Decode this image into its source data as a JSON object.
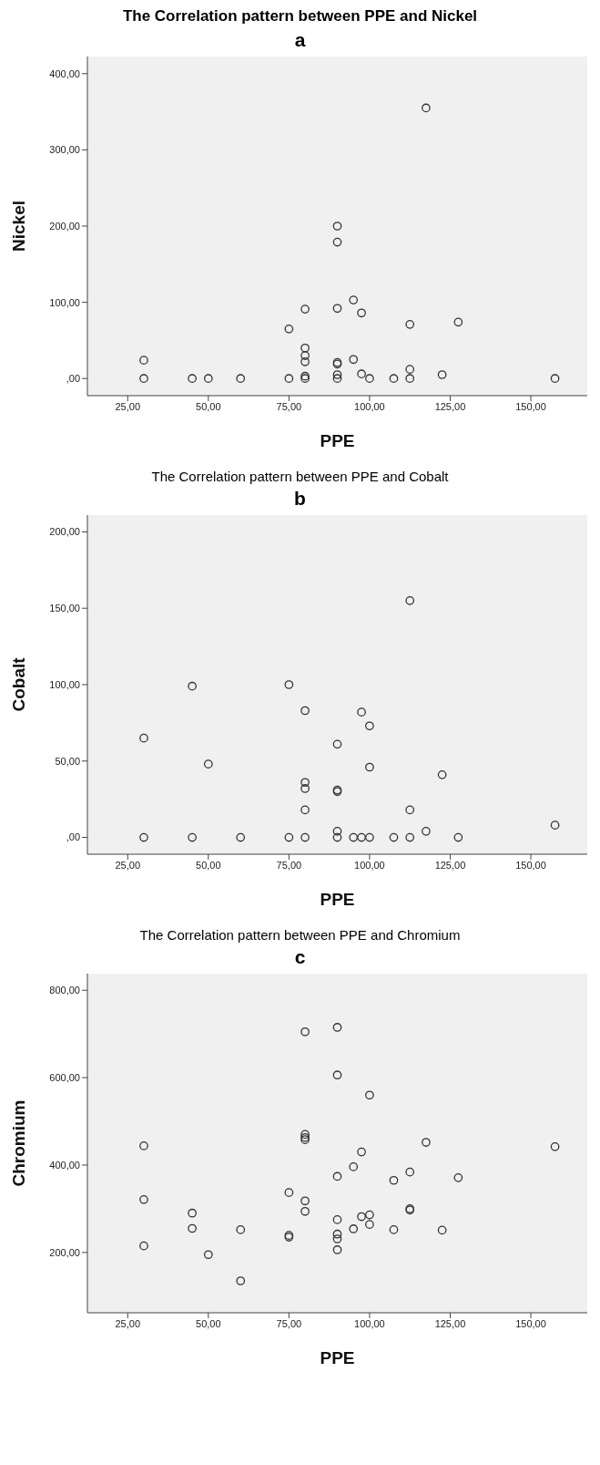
{
  "chart_data": [
    {
      "type": "scatter",
      "title": "The Correlation pattern between PPE and Nickel",
      "subtitle": "a",
      "xlabel": "PPE",
      "ylabel": "Nickel",
      "color": "#333333",
      "marker": "circle",
      "grid": false,
      "xlim": [
        12.5,
        167.5
      ],
      "xticks": [
        {
          "value": 25,
          "label": "25,00"
        },
        {
          "value": 50,
          "label": "50,00"
        },
        {
          "value": 75,
          "label": "75,00"
        },
        {
          "value": 100,
          "label": "100,00"
        },
        {
          "value": 125,
          "label": "125,00"
        },
        {
          "value": 150,
          "label": "150,00"
        }
      ],
      "ylim": [
        -22.5,
        422.5
      ],
      "yticks": [
        {
          "value": 0,
          "label": ",00"
        },
        {
          "value": 100,
          "label": "100,00"
        },
        {
          "value": 200,
          "label": "200,00"
        },
        {
          "value": 300,
          "label": "300,00"
        },
        {
          "value": 400,
          "label": "400,00"
        }
      ],
      "x": [
        30,
        30,
        45,
        50,
        60,
        75,
        75,
        80,
        80,
        80,
        80,
        80,
        80,
        90,
        90,
        90,
        90,
        90,
        90,
        90,
        95,
        95,
        97.5,
        97.5,
        100,
        107.5,
        112.5,
        112.5,
        112.5,
        117.5,
        122.5,
        127.5,
        157.5
      ],
      "values": [
        24,
        0,
        0,
        0,
        0,
        0,
        65,
        91,
        40,
        30,
        22,
        3,
        0,
        200,
        179,
        92,
        21,
        19,
        5,
        0,
        103,
        25,
        86,
        6,
        0,
        0,
        71,
        12,
        0,
        355,
        5,
        74,
        0
      ]
    },
    {
      "type": "scatter",
      "title": "The Correlation pattern between PPE and Cobalt",
      "subtitle": "b",
      "xlabel": "PPE",
      "ylabel": "Cobalt",
      "color": "#333333",
      "marker": "circle",
      "grid": false,
      "xlim": [
        12.5,
        167.5
      ],
      "xticks": [
        {
          "value": 25,
          "label": "25,00"
        },
        {
          "value": 50,
          "label": "50,00"
        },
        {
          "value": 75,
          "label": "75,00"
        },
        {
          "value": 100,
          "label": "100,00"
        },
        {
          "value": 125,
          "label": "125,00"
        },
        {
          "value": 150,
          "label": "150,00"
        }
      ],
      "ylim": [
        -11,
        211
      ],
      "yticks": [
        {
          "value": 0,
          "label": ",00"
        },
        {
          "value": 50,
          "label": "50,00"
        },
        {
          "value": 100,
          "label": "100,00"
        },
        {
          "value": 150,
          "label": "150,00"
        },
        {
          "value": 200,
          "label": "200,00"
        }
      ],
      "x": [
        30,
        30,
        45,
        45,
        50,
        60,
        75,
        75,
        80,
        80,
        80,
        80,
        80,
        90,
        90,
        90,
        90,
        90,
        95,
        97.5,
        97.5,
        100,
        100,
        100,
        107.5,
        112.5,
        112.5,
        112.5,
        117.5,
        122.5,
        127.5,
        157.5
      ],
      "values": [
        65,
        0,
        99,
        0,
        48,
        0,
        100,
        0,
        83,
        36,
        32,
        18,
        0,
        61,
        31,
        30,
        4,
        0,
        0,
        82,
        0,
        73,
        46,
        0,
        0,
        155,
        18,
        0,
        4,
        41,
        0,
        8
      ]
    },
    {
      "type": "scatter",
      "title": "The Correlation pattern between PPE and Chromium",
      "subtitle": "c",
      "xlabel": "PPE",
      "ylabel": "Chromium",
      "color": "#333333",
      "marker": "circle",
      "grid": false,
      "xlim": [
        12.5,
        167.5
      ],
      "xticks": [
        {
          "value": 25,
          "label": "25,00"
        },
        {
          "value": 50,
          "label": "50,00"
        },
        {
          "value": 75,
          "label": "75,00"
        },
        {
          "value": 100,
          "label": "100,00"
        },
        {
          "value": 125,
          "label": "125,00"
        },
        {
          "value": 150,
          "label": "150,00"
        }
      ],
      "ylim": [
        62,
        838
      ],
      "yticks": [
        {
          "value": 200,
          "label": "200,00"
        },
        {
          "value": 400,
          "label": "400,00"
        },
        {
          "value": 600,
          "label": "600,00"
        },
        {
          "value": 800,
          "label": "800,00"
        }
      ],
      "x": [
        30,
        30,
        30,
        45,
        45,
        50,
        60,
        60,
        75,
        75,
        75,
        80,
        80,
        80,
        80,
        80,
        80,
        90,
        90,
        90,
        90,
        90,
        90,
        90,
        95,
        95,
        97.5,
        97.5,
        100,
        100,
        100,
        107.5,
        107.5,
        112.5,
        112.5,
        112.5,
        117.5,
        122.5,
        127.5,
        157.5
      ],
      "values": [
        444,
        321,
        215,
        290,
        255,
        195,
        252,
        135,
        337,
        239,
        235,
        705,
        470,
        463,
        458,
        318,
        294,
        715,
        606,
        374,
        275,
        242,
        231,
        206,
        396,
        254,
        430,
        282,
        560,
        286,
        264,
        365,
        252,
        384,
        300,
        297,
        452,
        251,
        371,
        442
      ]
    }
  ]
}
